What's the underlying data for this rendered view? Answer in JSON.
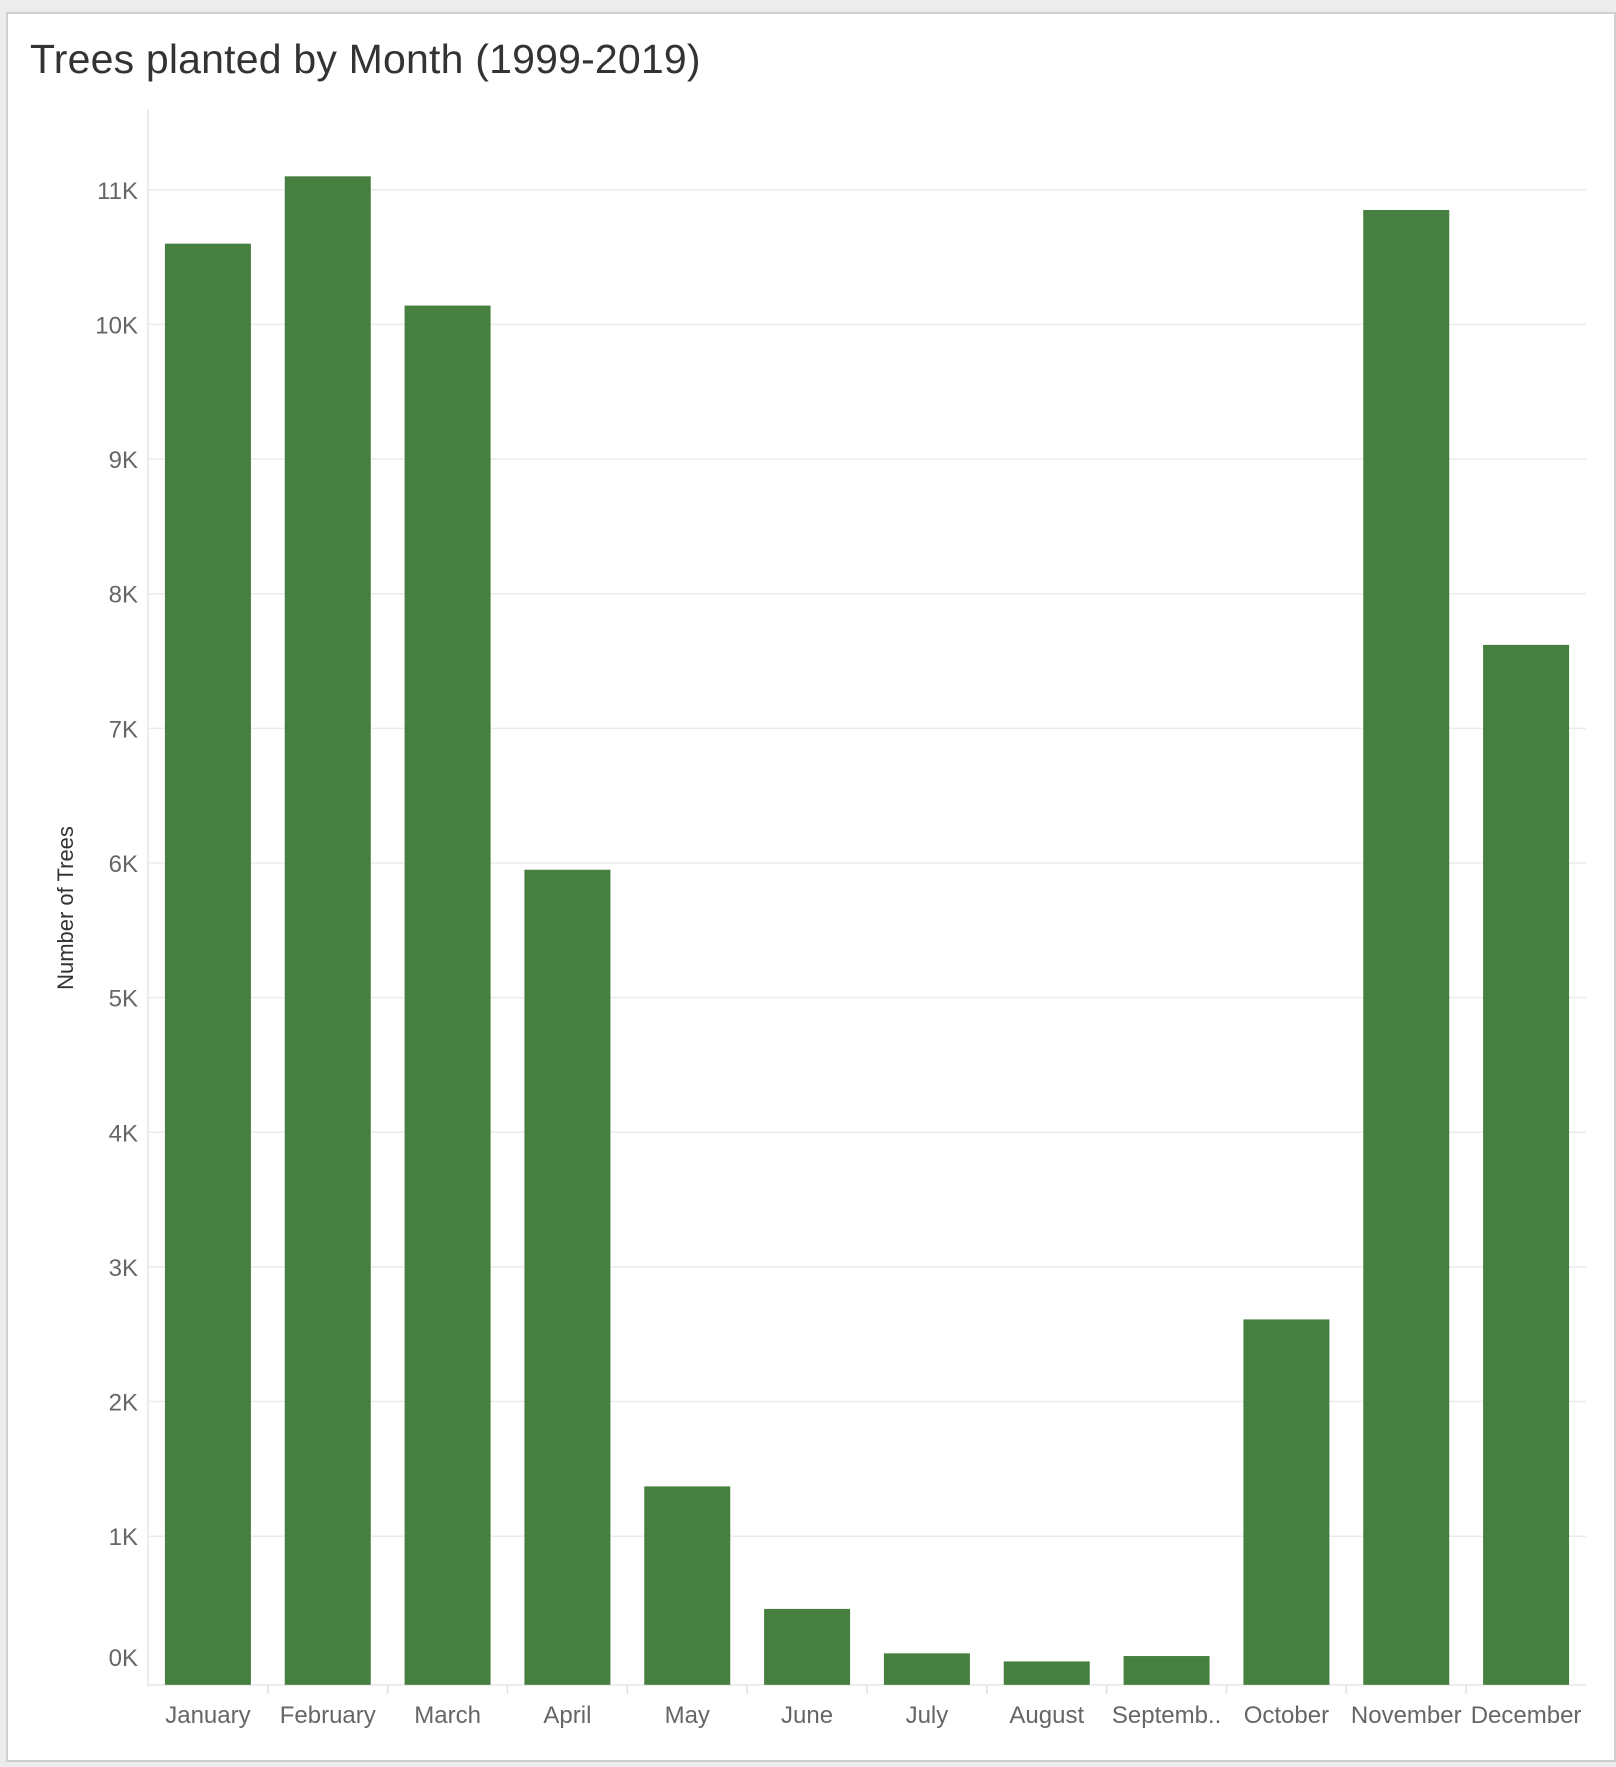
{
  "chart_data": {
    "type": "bar",
    "title": "Trees planted by Month (1999-2019)",
    "xlabel": "",
    "ylabel": "Number of Trees",
    "categories": [
      "January",
      "February",
      "March",
      "April",
      "May",
      "June",
      "July",
      "August",
      "Septemb..",
      "October",
      "November",
      "December"
    ],
    "values": [
      10600,
      11100,
      10140,
      5950,
      1370,
      460,
      130,
      70,
      110,
      2610,
      10850,
      7620
    ],
    "ylim": [
      -120,
      11600
    ],
    "y_ticks": [
      0,
      1000,
      2000,
      3000,
      4000,
      5000,
      6000,
      7000,
      8000,
      9000,
      10000,
      11000
    ],
    "y_tick_labels": [
      "0K",
      "1K",
      "2K",
      "3K",
      "4K",
      "5K",
      "6K",
      "7K",
      "8K",
      "9K",
      "10K",
      "11K"
    ],
    "grid": true,
    "legend": "none",
    "bar_color": "#467f40"
  }
}
